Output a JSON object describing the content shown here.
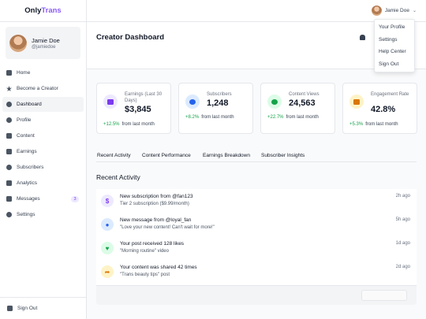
{
  "app": {
    "logo_main": "Only",
    "logo_accent": "Trans",
    "accent_color": "#8b5cf6"
  },
  "user": {
    "name": "Jamie Doe",
    "handle": "@jamiedoe"
  },
  "sidebar": {
    "items": [
      {
        "label": "Home",
        "icon": "home-icon",
        "active": false
      },
      {
        "label": "Become a Creator",
        "icon": "star-icon",
        "active": false
      },
      {
        "label": "Dashboard",
        "icon": "dashboard-icon",
        "active": true
      },
      {
        "label": "Profile",
        "icon": "user-icon",
        "active": false
      },
      {
        "label": "Content",
        "icon": "content-icon",
        "active": false
      },
      {
        "label": "Earnings",
        "icon": "wallet-icon",
        "active": false
      },
      {
        "label": "Subscribers",
        "icon": "users-icon",
        "active": false
      },
      {
        "label": "Analytics",
        "icon": "chart-icon",
        "active": false
      },
      {
        "label": "Messages",
        "icon": "envelope-icon",
        "active": false,
        "badge": "3"
      },
      {
        "label": "Settings",
        "icon": "gear-icon",
        "active": false
      }
    ],
    "sign_out": "Sign Out"
  },
  "topbar": {
    "user_name": "Jamie Doe"
  },
  "dropdown": {
    "items": [
      "Your Profile",
      "Settings",
      "Help Center",
      "Sign Out"
    ]
  },
  "header": {
    "title": "Creator Dashboard"
  },
  "stats": [
    {
      "label": "Earnings (Last 30 Days)",
      "value": "$3,845",
      "change": "+12.5%",
      "from": "from last month",
      "icon": "wallet-icon",
      "bg": "#ede9fe",
      "fg": "#7c3aed"
    },
    {
      "label": "Subscribers",
      "value": "1,248",
      "change": "+8.2%",
      "from": "from last month",
      "icon": "users-icon",
      "bg": "#dbeafe",
      "fg": "#2563eb"
    },
    {
      "label": "Content Views",
      "value": "24,563",
      "change": "+22.7%",
      "from": "from last month",
      "icon": "eye-icon",
      "bg": "#dcfce7",
      "fg": "#16a34a"
    },
    {
      "label": "Engagement Rate",
      "value": "42.8%",
      "change": "+5.3%",
      "from": "from last month",
      "icon": "chat-icon",
      "bg": "#fef3c7",
      "fg": "#d97706"
    }
  ],
  "tabs": [
    "Recent Activity",
    "Content Performance",
    "Earnings Breakdown",
    "Subscriber Insights"
  ],
  "activity": {
    "title": "Recent Activity",
    "items": [
      {
        "title": "New subscription from @fan123",
        "sub": "Tier 2 subscription ($9.99/month)",
        "time": "2h ago",
        "glyph": "$",
        "icon": "dollar-icon",
        "bg": "#ede9fe",
        "fg": "#7c3aed"
      },
      {
        "title": "New message from @loyal_fan",
        "sub": "\"Love your new content! Can't wait for more!\"",
        "time": "5h ago",
        "glyph": "●",
        "icon": "chat-icon",
        "bg": "#dbeafe",
        "fg": "#2563eb"
      },
      {
        "title": "Your post received 128 likes",
        "sub": "\"Morning routine\" video",
        "time": "1d ago",
        "glyph": "♥",
        "icon": "heart-icon",
        "bg": "#dcfce7",
        "fg": "#16a34a"
      },
      {
        "title": "Your content was shared 42 times",
        "sub": "\"Trans beauty tips\" post",
        "time": "2d ago",
        "glyph": "➦",
        "icon": "share-icon",
        "bg": "#fef3c7",
        "fg": "#d97706"
      }
    ]
  }
}
